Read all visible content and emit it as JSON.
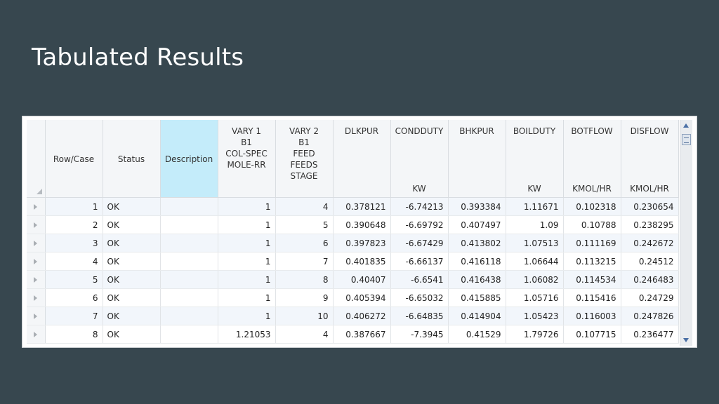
{
  "slide": {
    "title": "Tabulated Results"
  },
  "grid": {
    "columns": [
      {
        "key": "row_case",
        "lines": [],
        "mid": [
          "Row/Case"
        ],
        "unit": ""
      },
      {
        "key": "status",
        "lines": [],
        "mid": [
          "Status"
        ],
        "unit": ""
      },
      {
        "key": "description",
        "lines": [],
        "mid": [
          "Description"
        ],
        "unit": ""
      },
      {
        "key": "vary1",
        "lines": [
          "VARY   1",
          "B1",
          "COL-SPEC",
          "MOLE-RR"
        ],
        "mid": [],
        "unit": ""
      },
      {
        "key": "vary2",
        "lines": [
          "VARY   2",
          "B1",
          "FEED",
          "FEEDS",
          "STAGE"
        ],
        "mid": [],
        "unit": ""
      },
      {
        "key": "dlkpur",
        "lines": [
          "DLKPUR"
        ],
        "mid": [],
        "unit": ""
      },
      {
        "key": "condduty",
        "lines": [
          "CONDDUTY"
        ],
        "mid": [],
        "unit": "KW"
      },
      {
        "key": "bhkpur",
        "lines": [
          "BHKPUR"
        ],
        "mid": [],
        "unit": ""
      },
      {
        "key": "boilduty",
        "lines": [
          "BOILDUTY"
        ],
        "mid": [],
        "unit": "KW"
      },
      {
        "key": "botflow",
        "lines": [
          "BOTFLOW"
        ],
        "mid": [],
        "unit": "KMOL/HR"
      },
      {
        "key": "disflow",
        "lines": [
          "DISFLOW"
        ],
        "mid": [],
        "unit": "KMOL/HR"
      }
    ],
    "rows": [
      [
        "1",
        "OK",
        "",
        "1",
        "4",
        "0.378121",
        "-6.74213",
        "0.393384",
        "1.11671",
        "0.102318",
        "0.230654"
      ],
      [
        "2",
        "OK",
        "",
        "1",
        "5",
        "0.390648",
        "-6.69792",
        "0.407497",
        "1.09",
        "0.10788",
        "0.238295"
      ],
      [
        "3",
        "OK",
        "",
        "1",
        "6",
        "0.397823",
        "-6.67429",
        "0.413802",
        "1.07513",
        "0.111169",
        "0.242672"
      ],
      [
        "4",
        "OK",
        "",
        "1",
        "7",
        "0.401835",
        "-6.66137",
        "0.416118",
        "1.06644",
        "0.113215",
        "0.24512"
      ],
      [
        "5",
        "OK",
        "",
        "1",
        "8",
        "0.40407",
        "-6.6541",
        "0.416438",
        "1.06082",
        "0.114534",
        "0.246483"
      ],
      [
        "6",
        "OK",
        "",
        "1",
        "9",
        "0.405394",
        "-6.65032",
        "0.415885",
        "1.05716",
        "0.115416",
        "0.24729"
      ],
      [
        "7",
        "OK",
        "",
        "1",
        "10",
        "0.406272",
        "-6.64835",
        "0.414904",
        "1.05423",
        "0.116003",
        "0.247826"
      ],
      [
        "8",
        "OK",
        "",
        "1.21053",
        "4",
        "0.387667",
        "-7.3945",
        "0.41529",
        "1.79726",
        "0.107715",
        "0.236477"
      ]
    ],
    "colors": {
      "selected_header": "#c4ecfa",
      "alt_row": "#f2f6fb",
      "background": "#37474f"
    }
  }
}
